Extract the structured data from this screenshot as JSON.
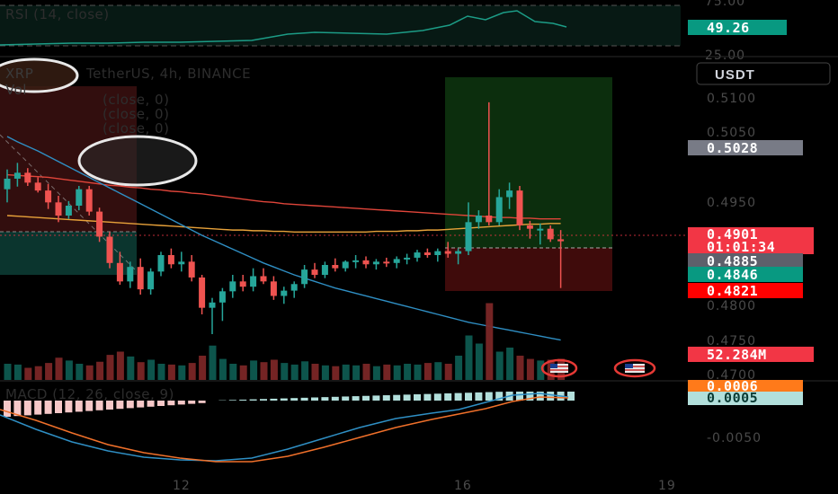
{
  "header": {
    "symbol": "XRP",
    "title": "TetherUS, 4h, BINANCE",
    "vol_label": "Vol",
    "indicator_lines": [
      "(close, 0)",
      "(close, 0)",
      "(close, 0)"
    ],
    "quote_currency": "USDT"
  },
  "rsi": {
    "label": "RSI (14, close)",
    "value": "49.26",
    "ticks": [
      "75.00",
      "25.00"
    ]
  },
  "macd": {
    "label": "MACD (12, 26, close, 9)",
    "values": [
      "0.0006",
      "0.0005"
    ],
    "ticks": [
      "-0.0050"
    ]
  },
  "price_axis": {
    "ticks": [
      "0.5100",
      "0.5050",
      "0.4950",
      "0.4800",
      "0.4750",
      "0.4700"
    ]
  },
  "price_tags": [
    {
      "label": "0.5028",
      "color": "#787b86"
    },
    {
      "label": "0.4901",
      "color": "#f23645"
    },
    {
      "label": "01:01:34",
      "color": "#f23645"
    },
    {
      "label": "0.4885",
      "color": "#5d606b"
    },
    {
      "label": "0.4846",
      "color": "#089981"
    },
    {
      "label": "0.4821",
      "color": "#ff0000"
    },
    {
      "label": "52.284M",
      "color": "#f23645"
    }
  ],
  "time_axis": {
    "ticks": [
      "12",
      "16",
      "19"
    ]
  },
  "colors": {
    "up": "#26a69a",
    "down": "#ef5350",
    "ma_red": "#e0453a",
    "ma_orange": "#e8a23a",
    "ma_blue": "#2f8fc4",
    "macd_line": "#2f8fc4",
    "signal_line": "#f0702a"
  },
  "chart_data": {
    "type": "candlestick",
    "candles_ohlc": [
      [
        0.498,
        0.501,
        0.496,
        0.4996
      ],
      [
        0.4996,
        0.502,
        0.4984,
        0.5005
      ],
      [
        0.5005,
        0.5012,
        0.4985,
        0.499
      ],
      [
        0.499,
        0.4998,
        0.4975,
        0.4978
      ],
      [
        0.4978,
        0.4988,
        0.495,
        0.496
      ],
      [
        0.496,
        0.497,
        0.493,
        0.494
      ],
      [
        0.494,
        0.4962,
        0.4935,
        0.4955
      ],
      [
        0.4955,
        0.4985,
        0.4948,
        0.498
      ],
      [
        0.498,
        0.4985,
        0.494,
        0.4946
      ],
      [
        0.4946,
        0.4952,
        0.49,
        0.4908
      ],
      [
        0.4908,
        0.4915,
        0.486,
        0.4868
      ],
      [
        0.4868,
        0.4885,
        0.4835,
        0.484
      ],
      [
        0.484,
        0.487,
        0.483,
        0.4862
      ],
      [
        0.4862,
        0.4875,
        0.482,
        0.4828
      ],
      [
        0.4828,
        0.486,
        0.482,
        0.4855
      ],
      [
        0.4855,
        0.4885,
        0.4848,
        0.488
      ],
      [
        0.488,
        0.489,
        0.486,
        0.4866
      ],
      [
        0.4866,
        0.4885,
        0.4855,
        0.487
      ],
      [
        0.487,
        0.488,
        0.484,
        0.4846
      ],
      [
        0.4846,
        0.485,
        0.479,
        0.48
      ],
      [
        0.48,
        0.4815,
        0.476,
        0.4808
      ],
      [
        0.4808,
        0.483,
        0.478,
        0.4825
      ],
      [
        0.4825,
        0.485,
        0.4815,
        0.484
      ],
      [
        0.484,
        0.485,
        0.4825,
        0.4832
      ],
      [
        0.4832,
        0.486,
        0.4825,
        0.4848
      ],
      [
        0.4848,
        0.486,
        0.4836,
        0.484
      ],
      [
        0.484,
        0.4848,
        0.4812,
        0.4818
      ],
      [
        0.4818,
        0.4832,
        0.4806,
        0.4826
      ],
      [
        0.4826,
        0.484,
        0.4815,
        0.4836
      ],
      [
        0.4836,
        0.4865,
        0.483,
        0.4858
      ],
      [
        0.4858,
        0.4868,
        0.4845,
        0.485
      ],
      [
        0.485,
        0.487,
        0.4845,
        0.4865
      ],
      [
        0.4865,
        0.4875,
        0.4855,
        0.486
      ],
      [
        0.486,
        0.4872,
        0.4855,
        0.487
      ],
      [
        0.487,
        0.488,
        0.486,
        0.4872
      ],
      [
        0.4872,
        0.4878,
        0.486,
        0.4866
      ],
      [
        0.4866,
        0.4874,
        0.4858,
        0.487
      ],
      [
        0.487,
        0.4876,
        0.4862,
        0.4868
      ],
      [
        0.4868,
        0.4878,
        0.486,
        0.4874
      ],
      [
        0.4874,
        0.4882,
        0.4866,
        0.4876
      ],
      [
        0.4876,
        0.4888,
        0.487,
        0.4884
      ],
      [
        0.4884,
        0.489,
        0.4876,
        0.488
      ],
      [
        0.488,
        0.489,
        0.487,
        0.4886
      ],
      [
        0.4886,
        0.49,
        0.4876,
        0.4882
      ],
      [
        0.4882,
        0.489,
        0.4866,
        0.4886
      ],
      [
        0.4886,
        0.496,
        0.488,
        0.493
      ],
      [
        0.493,
        0.4948,
        0.492,
        0.494
      ],
      [
        0.494,
        0.5112,
        0.4925,
        0.493
      ],
      [
        0.493,
        0.498,
        0.4925,
        0.4968
      ],
      [
        0.4968,
        0.499,
        0.495,
        0.4978
      ],
      [
        0.4978,
        0.4985,
        0.4918,
        0.4925
      ],
      [
        0.4925,
        0.4932,
        0.4905,
        0.492
      ],
      [
        0.492,
        0.4928,
        0.4896,
        0.492
      ],
      [
        0.492,
        0.4925,
        0.49,
        0.4904
      ],
      [
        0.4904,
        0.4918,
        0.483,
        0.4901
      ]
    ],
    "volume_millions": [
      40,
      38,
      30,
      34,
      42,
      55,
      48,
      40,
      36,
      45,
      62,
      70,
      58,
      44,
      50,
      40,
      38,
      36,
      42,
      60,
      85,
      52,
      40,
      36,
      48,
      44,
      50,
      42,
      38,
      46,
      40,
      36,
      34,
      38,
      36,
      40,
      34,
      38,
      36,
      40,
      38,
      42,
      44,
      40,
      60,
      110,
      90,
      190,
      70,
      80,
      60,
      52,
      48,
      50,
      52.284
    ],
    "ma_red": [
      0.5002,
      0.5001,
      0.5,
      0.4999,
      0.4998,
      0.4996,
      0.4994,
      0.4992,
      0.499,
      0.4988,
      0.4986,
      0.4985,
      0.4983,
      0.4982,
      0.498,
      0.4979,
      0.4977,
      0.4976,
      0.4974,
      0.4973,
      0.4971,
      0.4969,
      0.4967,
      0.4965,
      0.4963,
      0.4961,
      0.496,
      0.4958,
      0.4957,
      0.4956,
      0.4955,
      0.4954,
      0.4953,
      0.4952,
      0.4951,
      0.495,
      0.4949,
      0.4948,
      0.4947,
      0.4946,
      0.4945,
      0.4944,
      0.4943,
      0.4942,
      0.4941,
      0.494,
      0.4939,
      0.4938,
      0.4937,
      0.4937,
      0.4936,
      0.4936,
      0.4935,
      0.4935,
      0.4935
    ],
    "ma_orange": [
      0.494,
      0.4939,
      0.4938,
      0.4937,
      0.4936,
      0.4935,
      0.4934,
      0.4933,
      0.4932,
      0.4931,
      0.493,
      0.4929,
      0.4928,
      0.4927,
      0.4926,
      0.4925,
      0.4924,
      0.4923,
      0.4922,
      0.4921,
      0.492,
      0.4919,
      0.4918,
      0.4918,
      0.4917,
      0.4917,
      0.4916,
      0.4916,
      0.4915,
      0.4915,
      0.4915,
      0.4915,
      0.4915,
      0.4915,
      0.4915,
      0.4915,
      0.4916,
      0.4916,
      0.4916,
      0.4917,
      0.4917,
      0.4918,
      0.4918,
      0.4919,
      0.492,
      0.4921,
      0.4922,
      0.4923,
      0.4924,
      0.4925,
      0.4926,
      0.4927,
      0.4927,
      0.4928,
      0.4928
    ],
    "ma_blue": [
      0.506,
      0.5052,
      0.5045,
      0.5038,
      0.503,
      0.5022,
      0.5014,
      0.5006,
      0.4998,
      0.499,
      0.4982,
      0.4974,
      0.4966,
      0.4958,
      0.495,
      0.4942,
      0.4934,
      0.4926,
      0.4918,
      0.491,
      0.4903,
      0.4896,
      0.4889,
      0.4882,
      0.4875,
      0.4868,
      0.4862,
      0.4856,
      0.485,
      0.4845,
      0.484,
      0.4835,
      0.483,
      0.4826,
      0.4822,
      0.4818,
      0.4814,
      0.481,
      0.4806,
      0.4802,
      0.4798,
      0.4794,
      0.479,
      0.4786,
      0.4782,
      0.4778,
      0.4775,
      0.4772,
      0.4769,
      0.4766,
      0.4763,
      0.476,
      0.4757,
      0.4754,
      0.4751
    ],
    "ylim": [
      0.47,
      0.512
    ]
  }
}
